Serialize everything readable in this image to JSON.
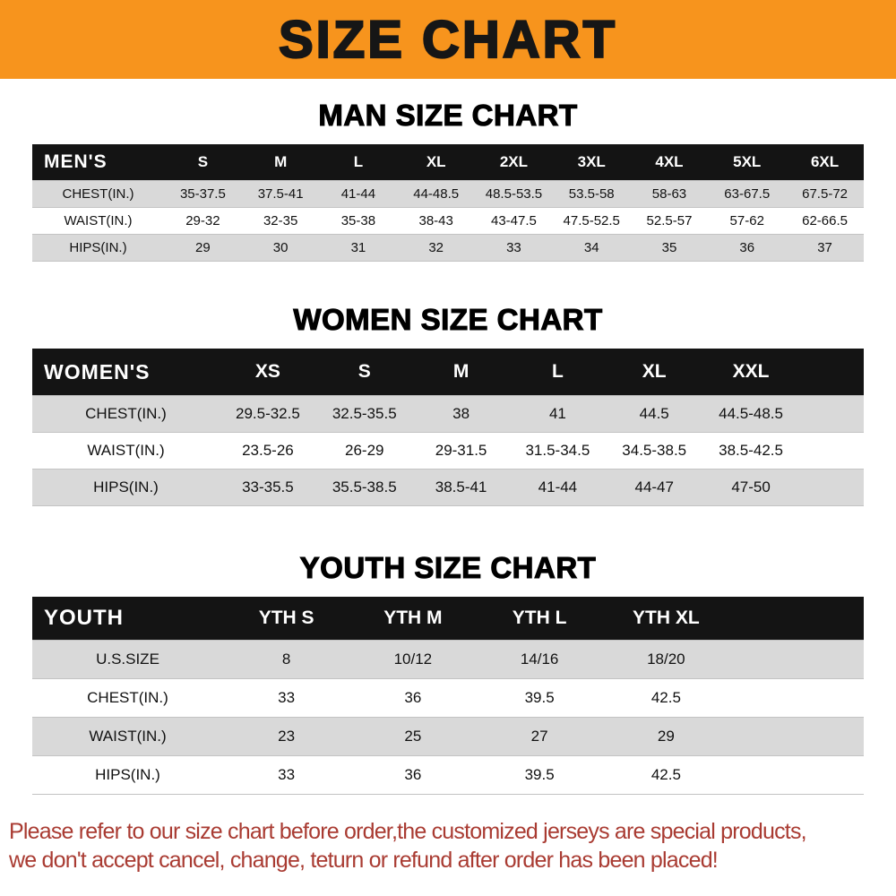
{
  "banner": {
    "title": "SIZE CHART"
  },
  "colors": {
    "banner_bg": "#f7941d",
    "table_header_bg": "#141414",
    "row_stripe": "#d9d9d9",
    "note_color": "#a93b32"
  },
  "sections": [
    {
      "id": "man",
      "heading": "MAN SIZE CHART",
      "header_label": "MEN'S",
      "columns": [
        "S",
        "M",
        "L",
        "XL",
        "2XL",
        "3XL",
        "4XL",
        "5XL",
        "6XL"
      ],
      "rows": [
        {
          "label": "CHEST(IN.)",
          "values": [
            "35-37.5",
            "37.5-41",
            "41-44",
            "44-48.5",
            "48.5-53.5",
            "53.5-58",
            "58-63",
            "63-67.5",
            "67.5-72"
          ]
        },
        {
          "label": "WAIST(IN.)",
          "values": [
            "29-32",
            "32-35",
            "35-38",
            "38-43",
            "43-47.5",
            "47.5-52.5",
            "52.5-57",
            "57-62",
            "62-66.5"
          ]
        },
        {
          "label": "HIPS(IN.)",
          "values": [
            "29",
            "30",
            "31",
            "32",
            "33",
            "34",
            "35",
            "36",
            "37"
          ]
        }
      ]
    },
    {
      "id": "women",
      "heading": "WOMEN SIZE CHART",
      "header_label": "WOMEN'S",
      "columns": [
        "XS",
        "S",
        "M",
        "L",
        "XL",
        "XXL"
      ],
      "rows": [
        {
          "label": "CHEST(IN.)",
          "values": [
            "29.5-32.5",
            "32.5-35.5",
            "38",
            "41",
            "44.5",
            "44.5-48.5"
          ]
        },
        {
          "label": "WAIST(IN.)",
          "values": [
            "23.5-26",
            "26-29",
            "29-31.5",
            "31.5-34.5",
            "34.5-38.5",
            "38.5-42.5"
          ]
        },
        {
          "label": "HIPS(IN.)",
          "values": [
            "33-35.5",
            "35.5-38.5",
            "38.5-41",
            "41-44",
            "44-47",
            "47-50"
          ]
        }
      ]
    },
    {
      "id": "youth",
      "heading": "YOUTH SIZE CHART",
      "header_label": "YOUTH",
      "columns": [
        "YTH S",
        "YTH M",
        "YTH L",
        "YTH XL"
      ],
      "rows": [
        {
          "label": "U.S.SIZE",
          "values": [
            "8",
            "10/12",
            "14/16",
            "18/20"
          ]
        },
        {
          "label": "CHEST(IN.)",
          "values": [
            "33",
            "36",
            "39.5",
            "42.5"
          ]
        },
        {
          "label": "WAIST(IN.)",
          "values": [
            "23",
            "25",
            "27",
            "29"
          ]
        },
        {
          "label": "HIPS(IN.)",
          "values": [
            "33",
            "36",
            "39.5",
            "42.5"
          ]
        }
      ]
    }
  ],
  "footer": {
    "line1": "Please refer to our size chart before order,the customized jerseys are special products,",
    "line2": "we don't accept cancel, change, teturn or refund after order has been placed!"
  }
}
